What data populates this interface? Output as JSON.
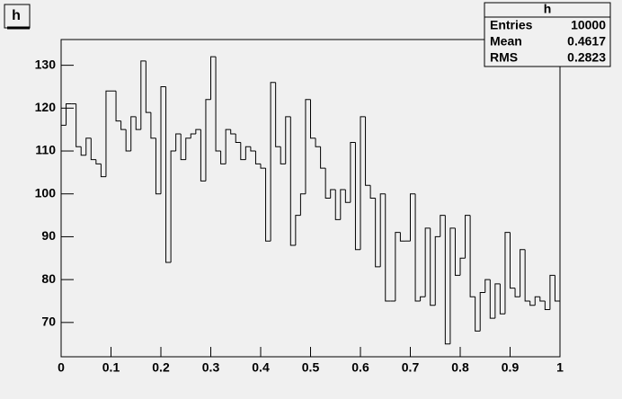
{
  "chart_data": {
    "type": "histogram",
    "title": "h",
    "bins": [
      0,
      0.01,
      0.02,
      0.03,
      0.04,
      0.05,
      0.06,
      0.07,
      0.08,
      0.09,
      0.1,
      0.11,
      0.12,
      0.13,
      0.14,
      0.15,
      0.16,
      0.17,
      0.18,
      0.19,
      0.2,
      0.21,
      0.22,
      0.23,
      0.24,
      0.25,
      0.26,
      0.27,
      0.28,
      0.29,
      0.3,
      0.31,
      0.32,
      0.33,
      0.34,
      0.35,
      0.36,
      0.37,
      0.38,
      0.39,
      0.4,
      0.41,
      0.42,
      0.43,
      0.44,
      0.45,
      0.46,
      0.47,
      0.48,
      0.49,
      0.5,
      0.51,
      0.52,
      0.53,
      0.54,
      0.55,
      0.56,
      0.57,
      0.58,
      0.59,
      0.6,
      0.61,
      0.62,
      0.63,
      0.64,
      0.65,
      0.66,
      0.67,
      0.68,
      0.69,
      0.7,
      0.71,
      0.72,
      0.73,
      0.74,
      0.75,
      0.76,
      0.77,
      0.78,
      0.79,
      0.8,
      0.81,
      0.82,
      0.83,
      0.84,
      0.85,
      0.86,
      0.87,
      0.88,
      0.89,
      0.9,
      0.91,
      0.92,
      0.93,
      0.94,
      0.95,
      0.96,
      0.97,
      0.98,
      0.99,
      1
    ],
    "values": [
      116,
      121,
      121,
      111,
      109,
      113,
      108,
      107,
      104,
      124,
      124,
      117,
      115,
      110,
      118,
      115,
      131,
      119,
      113,
      100,
      125,
      84,
      110,
      114,
      108,
      113,
      114,
      115,
      103,
      122,
      132,
      110,
      107,
      115,
      114,
      112,
      108,
      111,
      110,
      107,
      106,
      89,
      126,
      111,
      107,
      118,
      88,
      95,
      100,
      122,
      113,
      111,
      106,
      99,
      101,
      94,
      101,
      98,
      112,
      87,
      118,
      102,
      99,
      83,
      100,
      75,
      75,
      91,
      89,
      89,
      100,
      75,
      76,
      92,
      74,
      90,
      95,
      65,
      92,
      81,
      85,
      95,
      76,
      68,
      77,
      80,
      71,
      79,
      72,
      91,
      78,
      76,
      87,
      75,
      74,
      76,
      75,
      73,
      81,
      75
    ],
    "color": "#000000",
    "xlim": [
      0,
      1
    ],
    "xticks": [
      0,
      0.1,
      0.2,
      0.3,
      0.4,
      0.5,
      0.6,
      0.7,
      0.8,
      0.9,
      1
    ],
    "ylim": [
      62,
      136
    ],
    "yticks": [
      70,
      80,
      90,
      100,
      110,
      120,
      130
    ],
    "stats": {
      "title": "h",
      "rows": [
        [
          "Entries",
          "10000"
        ],
        [
          "Mean",
          "0.4617"
        ],
        [
          "RMS",
          "0.2823"
        ]
      ]
    }
  }
}
